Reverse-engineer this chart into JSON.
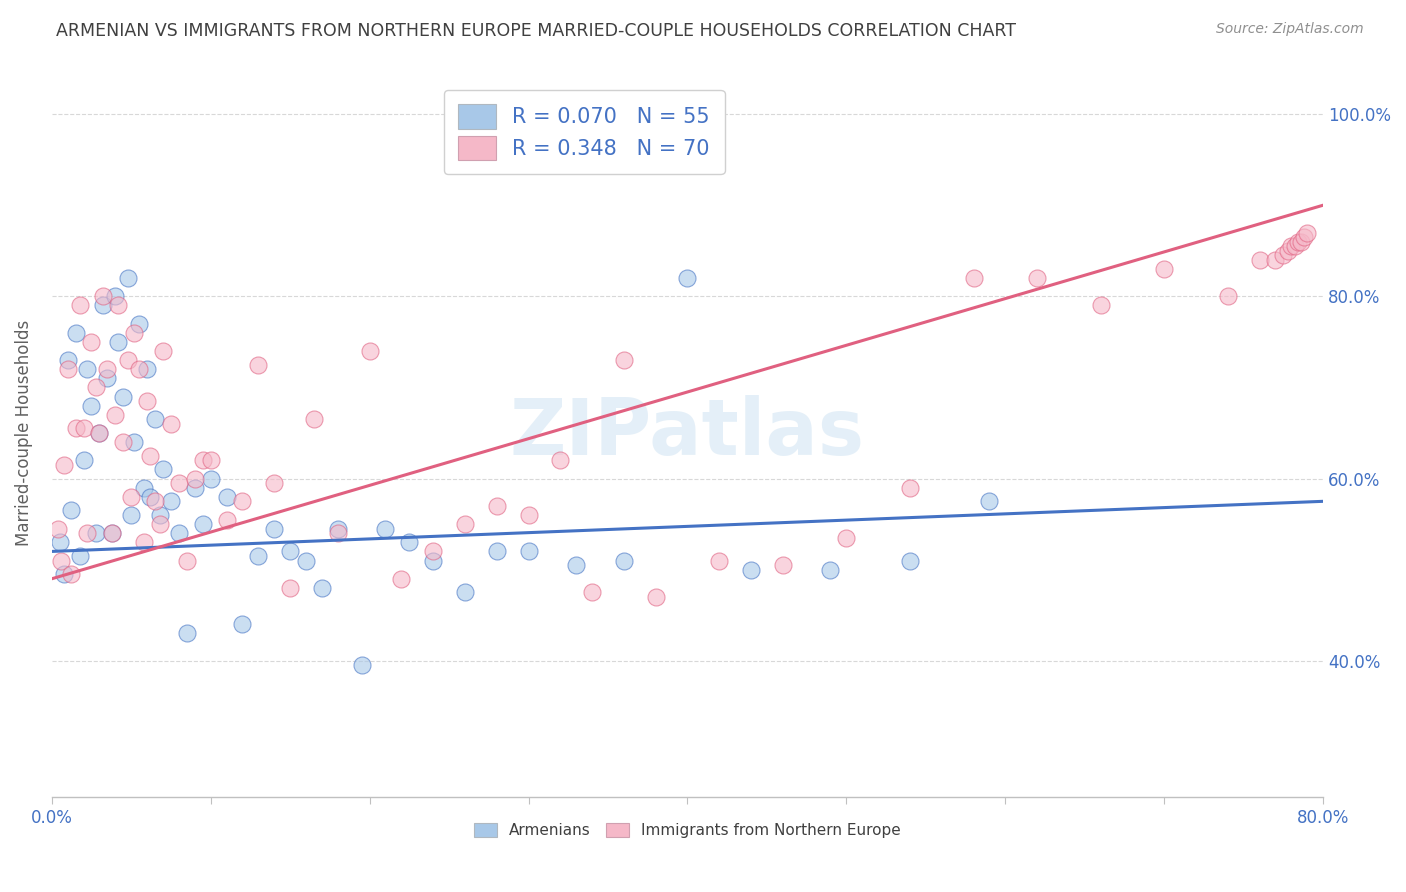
{
  "title": "ARMENIAN VS IMMIGRANTS FROM NORTHERN EUROPE MARRIED-COUPLE HOUSEHOLDS CORRELATION CHART",
  "source": "Source: ZipAtlas.com",
  "ylabel": "Married-couple Households",
  "xlim": [
    0.0,
    0.8
  ],
  "ylim": [
    0.25,
    1.05
  ],
  "x_ticks": [
    0.0,
    0.1,
    0.2,
    0.3,
    0.4,
    0.5,
    0.6,
    0.7,
    0.8
  ],
  "y_ticks": [
    0.4,
    0.6,
    0.8,
    1.0
  ],
  "y_tick_labels": [
    "40.0%",
    "60.0%",
    "80.0%",
    "100.0%"
  ],
  "watermark": "ZIPatlas",
  "legend_r_armenian": "0.070",
  "legend_n_armenian": "55",
  "legend_r_northern": "0.348",
  "legend_n_northern": "70",
  "blue_color": "#a8c8e8",
  "pink_color": "#f5b8c8",
  "blue_line_color": "#4472c4",
  "pink_line_color": "#e06080",
  "title_color": "#404040",
  "axis_color": "#4472c4",
  "grid_color": "#d8d8d8",
  "arm_line_x0": 0.0,
  "arm_line_y0": 0.52,
  "arm_line_x1": 0.8,
  "arm_line_y1": 0.575,
  "nor_line_x0": 0.0,
  "nor_line_y0": 0.49,
  "nor_line_x1": 0.8,
  "nor_line_y1": 0.9,
  "armenian_x": [
    0.005,
    0.008,
    0.01,
    0.012,
    0.015,
    0.018,
    0.02,
    0.022,
    0.025,
    0.028,
    0.03,
    0.032,
    0.035,
    0.038,
    0.04,
    0.042,
    0.045,
    0.048,
    0.05,
    0.052,
    0.055,
    0.058,
    0.06,
    0.062,
    0.065,
    0.068,
    0.07,
    0.075,
    0.08,
    0.085,
    0.09,
    0.095,
    0.1,
    0.11,
    0.12,
    0.13,
    0.14,
    0.15,
    0.16,
    0.17,
    0.18,
    0.195,
    0.21,
    0.225,
    0.24,
    0.26,
    0.28,
    0.3,
    0.33,
    0.36,
    0.4,
    0.44,
    0.49,
    0.54,
    0.59
  ],
  "armenian_y": [
    0.53,
    0.495,
    0.73,
    0.565,
    0.76,
    0.515,
    0.62,
    0.72,
    0.68,
    0.54,
    0.65,
    0.79,
    0.71,
    0.54,
    0.8,
    0.75,
    0.69,
    0.82,
    0.56,
    0.64,
    0.77,
    0.59,
    0.72,
    0.58,
    0.665,
    0.56,
    0.61,
    0.575,
    0.54,
    0.43,
    0.59,
    0.55,
    0.6,
    0.58,
    0.44,
    0.515,
    0.545,
    0.52,
    0.51,
    0.48,
    0.545,
    0.395,
    0.545,
    0.53,
    0.51,
    0.475,
    0.52,
    0.52,
    0.505,
    0.51,
    0.82,
    0.5,
    0.5,
    0.51,
    0.575
  ],
  "northern_x": [
    0.004,
    0.006,
    0.008,
    0.01,
    0.012,
    0.015,
    0.018,
    0.02,
    0.022,
    0.025,
    0.028,
    0.03,
    0.032,
    0.035,
    0.038,
    0.04,
    0.042,
    0.045,
    0.048,
    0.05,
    0.052,
    0.055,
    0.058,
    0.06,
    0.062,
    0.065,
    0.068,
    0.07,
    0.075,
    0.08,
    0.085,
    0.09,
    0.095,
    0.1,
    0.11,
    0.12,
    0.13,
    0.14,
    0.15,
    0.165,
    0.18,
    0.2,
    0.22,
    0.24,
    0.26,
    0.28,
    0.3,
    0.32,
    0.34,
    0.36,
    0.38,
    0.42,
    0.46,
    0.5,
    0.54,
    0.58,
    0.62,
    0.66,
    0.7,
    0.74,
    0.76,
    0.77,
    0.775,
    0.778,
    0.78,
    0.782,
    0.784,
    0.786,
    0.788,
    0.79
  ],
  "northern_y": [
    0.545,
    0.51,
    0.615,
    0.72,
    0.495,
    0.655,
    0.79,
    0.655,
    0.54,
    0.75,
    0.7,
    0.65,
    0.8,
    0.72,
    0.54,
    0.67,
    0.79,
    0.64,
    0.73,
    0.58,
    0.76,
    0.72,
    0.53,
    0.685,
    0.625,
    0.575,
    0.55,
    0.74,
    0.66,
    0.595,
    0.51,
    0.6,
    0.62,
    0.62,
    0.555,
    0.575,
    0.725,
    0.595,
    0.48,
    0.665,
    0.54,
    0.74,
    0.49,
    0.52,
    0.55,
    0.57,
    0.56,
    0.62,
    0.475,
    0.73,
    0.47,
    0.51,
    0.505,
    0.535,
    0.59,
    0.82,
    0.82,
    0.79,
    0.83,
    0.8,
    0.84,
    0.84,
    0.845,
    0.85,
    0.855,
    0.855,
    0.86,
    0.86,
    0.865,
    0.87
  ]
}
